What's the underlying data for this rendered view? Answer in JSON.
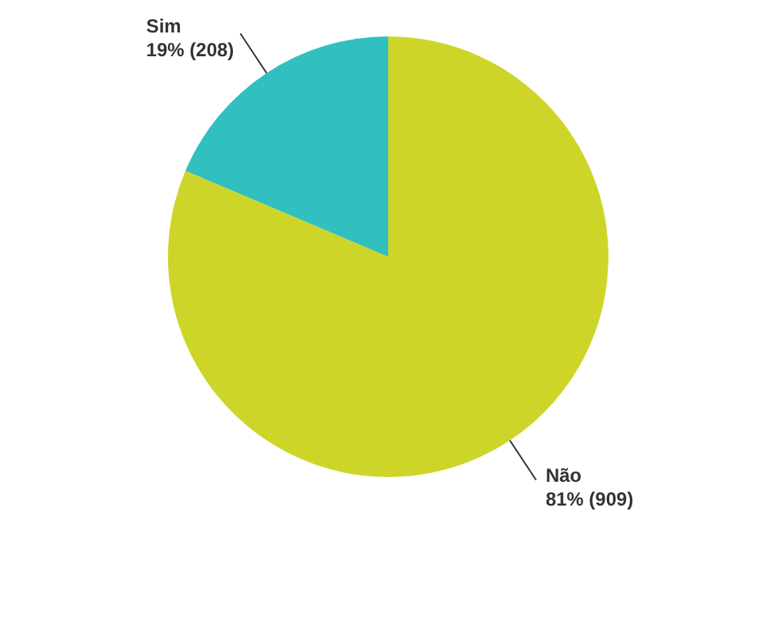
{
  "chart_data": {
    "type": "pie",
    "categories": [
      "Não",
      "Sim"
    ],
    "values": [
      909,
      208
    ],
    "colors": [
      "#cdd628",
      "#31bfbf"
    ],
    "value_labels": [
      "81% (909)",
      "19% (208)"
    ],
    "legend": false
  }
}
